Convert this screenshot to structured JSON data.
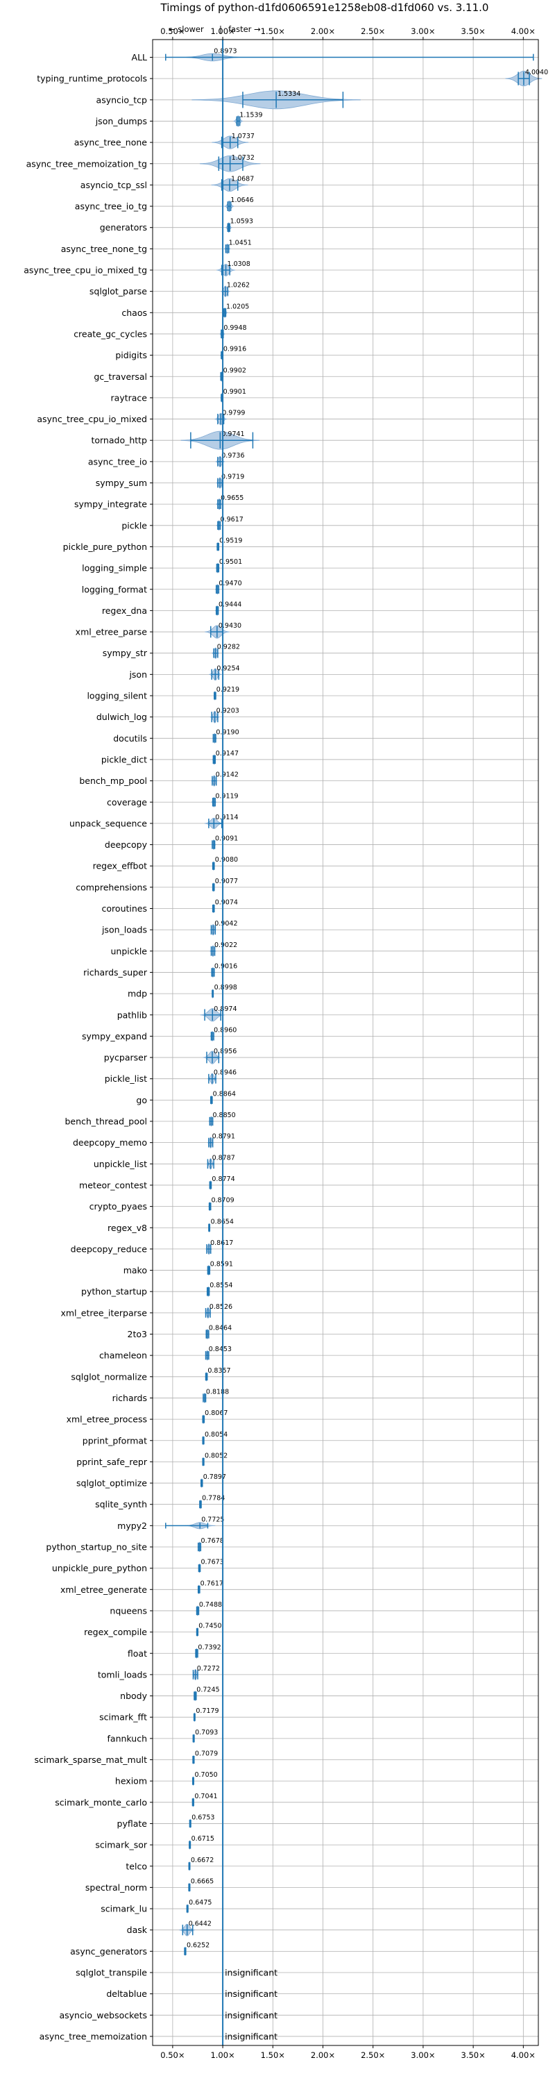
{
  "chart_data": {
    "type": "violin",
    "title": "Timings of python-d1fd0606591e1258eb08-d1fd060 vs. 3.11.0",
    "direction_labels": {
      "slower": "← slower",
      "separator": "|",
      "faster": "faster →"
    },
    "xlim": [
      0.3,
      4.15
    ],
    "x_ticks": [
      0.5,
      1.0,
      1.5,
      2.0,
      2.5,
      3.0,
      3.5,
      4.0
    ],
    "x_tick_labels": [
      "0.50×",
      "1.00×",
      "1.50×",
      "2.00×",
      "2.50×",
      "3.00×",
      "3.50×",
      "4.00×"
    ],
    "reference_line": 1.0,
    "grid": true,
    "insignificant_label": "insignificant",
    "benchmarks": [
      {
        "name": "ALL",
        "label": "0.8973",
        "value": 0.8973,
        "min": 0.43,
        "max": 4.1,
        "spread": 0.1,
        "height": 0.35
      },
      {
        "name": "typing_runtime_protocols",
        "label": "4.0040",
        "value": 4.004,
        "min": 3.95,
        "max": 4.06,
        "spread": 0.06,
        "height": 0.7
      },
      {
        "name": "asyncio_tcp",
        "label": "1.5334",
        "value": 1.5334,
        "min": 1.2,
        "max": 2.2,
        "spread": 0.28,
        "height": 0.85
      },
      {
        "name": "json_dumps",
        "label": "1.1539",
        "value": 1.1539,
        "min": 1.14,
        "max": 1.17,
        "spread": 0.015,
        "height": 0.5
      },
      {
        "name": "async_tree_none",
        "label": "1.0737",
        "value": 1.0737,
        "min": 0.99,
        "max": 1.15,
        "spread": 0.06,
        "height": 0.6
      },
      {
        "name": "async_tree_memoization_tg",
        "label": "1.0732",
        "value": 1.0732,
        "min": 0.96,
        "max": 1.2,
        "spread": 0.1,
        "height": 0.75
      },
      {
        "name": "asyncio_tcp_ssl",
        "label": "1.0687",
        "value": 1.0687,
        "min": 0.99,
        "max": 1.15,
        "spread": 0.06,
        "height": 0.6
      },
      {
        "name": "async_tree_io_tg",
        "label": "1.0646",
        "value": 1.0646,
        "min": 1.05,
        "max": 1.08,
        "spread": 0.015,
        "height": 0.5
      },
      {
        "name": "generators",
        "label": "1.0593",
        "value": 1.0593,
        "min": 1.05,
        "max": 1.07,
        "spread": 0.01,
        "height": 0.45
      },
      {
        "name": "async_tree_none_tg",
        "label": "1.0451",
        "value": 1.0451,
        "min": 1.03,
        "max": 1.06,
        "spread": 0.01,
        "height": 0.45
      },
      {
        "name": "async_tree_cpu_io_mixed_tg",
        "label": "1.0308",
        "value": 1.0308,
        "min": 0.99,
        "max": 1.07,
        "spread": 0.03,
        "height": 0.55
      },
      {
        "name": "sqlglot_parse",
        "label": "1.0262",
        "value": 1.0262,
        "min": 1.0,
        "max": 1.05,
        "spread": 0.015,
        "height": 0.5
      },
      {
        "name": "chaos",
        "label": "1.0205",
        "value": 1.0205,
        "min": 1.01,
        "max": 1.03,
        "spread": 0.008,
        "height": 0.45
      },
      {
        "name": "create_gc_cycles",
        "label": "0.9948",
        "value": 0.9948,
        "min": 0.985,
        "max": 1.005,
        "spread": 0.008,
        "height": 0.45
      },
      {
        "name": "pidigits",
        "label": "0.9916",
        "value": 0.9916,
        "min": 0.985,
        "max": 1.0,
        "spread": 0.005,
        "height": 0.4
      },
      {
        "name": "gc_traversal",
        "label": "0.9902",
        "value": 0.9902,
        "min": 0.98,
        "max": 1.0,
        "spread": 0.006,
        "height": 0.45
      },
      {
        "name": "raytrace",
        "label": "0.9901",
        "value": 0.9901,
        "min": 0.985,
        "max": 0.995,
        "spread": 0.004,
        "height": 0.4
      },
      {
        "name": "async_tree_cpu_io_mixed",
        "label": "0.9799",
        "value": 0.9799,
        "min": 0.95,
        "max": 1.01,
        "spread": 0.02,
        "height": 0.55
      },
      {
        "name": "tornado_http",
        "label": "0.9741",
        "value": 0.9741,
        "min": 0.68,
        "max": 1.3,
        "spread": 0.13,
        "height": 0.85
      },
      {
        "name": "async_tree_io",
        "label": "0.9736",
        "value": 0.9736,
        "min": 0.95,
        "max": 1.0,
        "spread": 0.015,
        "height": 0.5
      },
      {
        "name": "sympy_sum",
        "label": "0.9719",
        "value": 0.9719,
        "min": 0.95,
        "max": 0.995,
        "spread": 0.012,
        "height": 0.5
      },
      {
        "name": "sympy_integrate",
        "label": "0.9655",
        "value": 0.9655,
        "min": 0.95,
        "max": 0.98,
        "spread": 0.01,
        "height": 0.5
      },
      {
        "name": "pickle",
        "label": "0.9617",
        "value": 0.9617,
        "min": 0.95,
        "max": 0.975,
        "spread": 0.008,
        "height": 0.45
      },
      {
        "name": "pickle_pure_python",
        "label": "0.9519",
        "value": 0.9519,
        "min": 0.945,
        "max": 0.96,
        "spread": 0.005,
        "height": 0.4
      },
      {
        "name": "logging_simple",
        "label": "0.9501",
        "value": 0.9501,
        "min": 0.94,
        "max": 0.96,
        "spread": 0.006,
        "height": 0.45
      },
      {
        "name": "logging_format",
        "label": "0.9470",
        "value": 0.947,
        "min": 0.935,
        "max": 0.96,
        "spread": 0.007,
        "height": 0.45
      },
      {
        "name": "regex_dna",
        "label": "0.9444",
        "value": 0.9444,
        "min": 0.935,
        "max": 0.955,
        "spread": 0.006,
        "height": 0.45
      },
      {
        "name": "xml_etree_parse",
        "label": "0.9430",
        "value": 0.943,
        "min": 0.88,
        "max": 1.0,
        "spread": 0.04,
        "height": 0.6
      },
      {
        "name": "sympy_str",
        "label": "0.9282",
        "value": 0.9282,
        "min": 0.91,
        "max": 0.95,
        "spread": 0.012,
        "height": 0.5
      },
      {
        "name": "json",
        "label": "0.9254",
        "value": 0.9254,
        "min": 0.89,
        "max": 0.96,
        "spread": 0.02,
        "height": 0.55
      },
      {
        "name": "logging_silent",
        "label": "0.9219",
        "value": 0.9219,
        "min": 0.915,
        "max": 0.93,
        "spread": 0.004,
        "height": 0.4
      },
      {
        "name": "dulwich_log",
        "label": "0.9203",
        "value": 0.9203,
        "min": 0.89,
        "max": 0.95,
        "spread": 0.015,
        "height": 0.55
      },
      {
        "name": "docutils",
        "label": "0.9190",
        "value": 0.919,
        "min": 0.905,
        "max": 0.93,
        "spread": 0.007,
        "height": 0.45
      },
      {
        "name": "pickle_dict",
        "label": "0.9147",
        "value": 0.9147,
        "min": 0.905,
        "max": 0.925,
        "spread": 0.006,
        "height": 0.45
      },
      {
        "name": "bench_mp_pool",
        "label": "0.9142",
        "value": 0.9142,
        "min": 0.895,
        "max": 0.935,
        "spread": 0.01,
        "height": 0.5
      },
      {
        "name": "coverage",
        "label": "0.9119",
        "value": 0.9119,
        "min": 0.9,
        "max": 0.925,
        "spread": 0.008,
        "height": 0.45
      },
      {
        "name": "unpack_sequence",
        "label": "0.9114",
        "value": 0.9114,
        "min": 0.86,
        "max": 0.99,
        "spread": 0.03,
        "height": 0.5
      },
      {
        "name": "deepcopy",
        "label": "0.9091",
        "value": 0.9091,
        "min": 0.895,
        "max": 0.92,
        "spread": 0.007,
        "height": 0.45
      },
      {
        "name": "regex_effbot",
        "label": "0.9080",
        "value": 0.908,
        "min": 0.9,
        "max": 0.915,
        "spread": 0.004,
        "height": 0.4
      },
      {
        "name": "comprehensions",
        "label": "0.9077",
        "value": 0.9077,
        "min": 0.9,
        "max": 0.915,
        "spread": 0.004,
        "height": 0.4
      },
      {
        "name": "coroutines",
        "label": "0.9074",
        "value": 0.9074,
        "min": 0.9,
        "max": 0.915,
        "spread": 0.004,
        "height": 0.4
      },
      {
        "name": "json_loads",
        "label": "0.9042",
        "value": 0.9042,
        "min": 0.885,
        "max": 0.925,
        "spread": 0.01,
        "height": 0.5
      },
      {
        "name": "unpickle",
        "label": "0.9022",
        "value": 0.9022,
        "min": 0.885,
        "max": 0.92,
        "spread": 0.01,
        "height": 0.5
      },
      {
        "name": "richards_super",
        "label": "0.9016",
        "value": 0.9016,
        "min": 0.89,
        "max": 0.915,
        "spread": 0.007,
        "height": 0.45
      },
      {
        "name": "mdp",
        "label": "0.8998",
        "value": 0.8998,
        "min": 0.895,
        "max": 0.905,
        "spread": 0.003,
        "height": 0.4
      },
      {
        "name": "pathlib",
        "label": "0.8974",
        "value": 0.8974,
        "min": 0.82,
        "max": 0.98,
        "spread": 0.04,
        "height": 0.6
      },
      {
        "name": "sympy_expand",
        "label": "0.8960",
        "value": 0.896,
        "min": 0.885,
        "max": 0.91,
        "spread": 0.007,
        "height": 0.45
      },
      {
        "name": "pycparser",
        "label": "0.8956",
        "value": 0.8956,
        "min": 0.84,
        "max": 0.96,
        "spread": 0.03,
        "height": 0.6
      },
      {
        "name": "pickle_list",
        "label": "0.8946",
        "value": 0.8946,
        "min": 0.86,
        "max": 0.93,
        "spread": 0.015,
        "height": 0.5
      },
      {
        "name": "go",
        "label": "0.8864",
        "value": 0.8864,
        "min": 0.88,
        "max": 0.895,
        "spread": 0.004,
        "height": 0.4
      },
      {
        "name": "bench_thread_pool",
        "label": "0.8850",
        "value": 0.885,
        "min": 0.87,
        "max": 0.9,
        "spread": 0.008,
        "height": 0.45
      },
      {
        "name": "deepcopy_memo",
        "label": "0.8791",
        "value": 0.8791,
        "min": 0.86,
        "max": 0.9,
        "spread": 0.01,
        "height": 0.5
      },
      {
        "name": "unpickle_list",
        "label": "0.8787",
        "value": 0.8787,
        "min": 0.85,
        "max": 0.91,
        "spread": 0.012,
        "height": 0.5
      },
      {
        "name": "meteor_contest",
        "label": "0.8774",
        "value": 0.8774,
        "min": 0.87,
        "max": 0.885,
        "spread": 0.004,
        "height": 0.4
      },
      {
        "name": "crypto_pyaes",
        "label": "0.8709",
        "value": 0.8709,
        "min": 0.865,
        "max": 0.88,
        "spread": 0.004,
        "height": 0.4
      },
      {
        "name": "regex_v8",
        "label": "0.8654",
        "value": 0.8654,
        "min": 0.86,
        "max": 0.87,
        "spread": 0.003,
        "height": 0.4
      },
      {
        "name": "deepcopy_reduce",
        "label": "0.8617",
        "value": 0.8617,
        "min": 0.84,
        "max": 0.88,
        "spread": 0.01,
        "height": 0.5
      },
      {
        "name": "mako",
        "label": "0.8591",
        "value": 0.8591,
        "min": 0.85,
        "max": 0.87,
        "spread": 0.005,
        "height": 0.45
      },
      {
        "name": "python_startup",
        "label": "0.8554",
        "value": 0.8554,
        "min": 0.845,
        "max": 0.865,
        "spread": 0.005,
        "height": 0.45
      },
      {
        "name": "xml_etree_iterparse",
        "label": "0.8526",
        "value": 0.8526,
        "min": 0.83,
        "max": 0.875,
        "spread": 0.01,
        "height": 0.5
      },
      {
        "name": "2to3",
        "label": "0.8464",
        "value": 0.8464,
        "min": 0.835,
        "max": 0.86,
        "spread": 0.006,
        "height": 0.45
      },
      {
        "name": "chameleon",
        "label": "0.8453",
        "value": 0.8453,
        "min": 0.83,
        "max": 0.86,
        "spread": 0.007,
        "height": 0.45
      },
      {
        "name": "sqlglot_normalize",
        "label": "0.8357",
        "value": 0.8357,
        "min": 0.83,
        "max": 0.845,
        "spread": 0.004,
        "height": 0.4
      },
      {
        "name": "richards",
        "label": "0.8188",
        "value": 0.8188,
        "min": 0.805,
        "max": 0.83,
        "spread": 0.006,
        "height": 0.45
      },
      {
        "name": "xml_etree_process",
        "label": "0.8067",
        "value": 0.8067,
        "min": 0.8,
        "max": 0.815,
        "spread": 0.004,
        "height": 0.4
      },
      {
        "name": "pprint_pformat",
        "label": "0.8054",
        "value": 0.8054,
        "min": 0.8,
        "max": 0.812,
        "spread": 0.003,
        "height": 0.4
      },
      {
        "name": "pprint_safe_repr",
        "label": "0.8052",
        "value": 0.8052,
        "min": 0.8,
        "max": 0.812,
        "spread": 0.003,
        "height": 0.4
      },
      {
        "name": "sqlglot_optimize",
        "label": "0.7897",
        "value": 0.7897,
        "min": 0.783,
        "max": 0.797,
        "spread": 0.003,
        "height": 0.4
      },
      {
        "name": "sqlite_synth",
        "label": "0.7784",
        "value": 0.7784,
        "min": 0.77,
        "max": 0.785,
        "spread": 0.003,
        "height": 0.4
      },
      {
        "name": "mypy2",
        "label": "0.7725",
        "value": 0.7725,
        "min": 0.43,
        "max": 0.85,
        "spread": 0.05,
        "height": 0.3
      },
      {
        "name": "python_startup_no_site",
        "label": "0.7678",
        "value": 0.7678,
        "min": 0.755,
        "max": 0.78,
        "spread": 0.006,
        "height": 0.45
      },
      {
        "name": "unpickle_pure_python",
        "label": "0.7673",
        "value": 0.7673,
        "min": 0.76,
        "max": 0.775,
        "spread": 0.003,
        "height": 0.4
      },
      {
        "name": "xml_etree_generate",
        "label": "0.7617",
        "value": 0.7617,
        "min": 0.755,
        "max": 0.77,
        "spread": 0.003,
        "height": 0.4
      },
      {
        "name": "nqueens",
        "label": "0.7488",
        "value": 0.7488,
        "min": 0.74,
        "max": 0.76,
        "spread": 0.005,
        "height": 0.45
      },
      {
        "name": "regex_compile",
        "label": "0.7450",
        "value": 0.745,
        "min": 0.74,
        "max": 0.752,
        "spread": 0.003,
        "height": 0.4
      },
      {
        "name": "float",
        "label": "0.7392",
        "value": 0.7392,
        "min": 0.73,
        "max": 0.75,
        "spread": 0.005,
        "height": 0.45
      },
      {
        "name": "tomli_loads",
        "label": "0.7272",
        "value": 0.7272,
        "min": 0.705,
        "max": 0.75,
        "spread": 0.01,
        "height": 0.5
      },
      {
        "name": "nbody",
        "label": "0.7245",
        "value": 0.7245,
        "min": 0.715,
        "max": 0.735,
        "spread": 0.005,
        "height": 0.45
      },
      {
        "name": "scimark_fft",
        "label": "0.7179",
        "value": 0.7179,
        "min": 0.713,
        "max": 0.723,
        "spread": 0.003,
        "height": 0.4
      },
      {
        "name": "fannkuch",
        "label": "0.7093",
        "value": 0.7093,
        "min": 0.704,
        "max": 0.715,
        "spread": 0.003,
        "height": 0.4
      },
      {
        "name": "scimark_sparse_mat_mult",
        "label": "0.7079",
        "value": 0.7079,
        "min": 0.702,
        "max": 0.714,
        "spread": 0.003,
        "height": 0.4
      },
      {
        "name": "hexiom",
        "label": "0.7050",
        "value": 0.705,
        "min": 0.7,
        "max": 0.71,
        "spread": 0.003,
        "height": 0.4
      },
      {
        "name": "scimark_monte_carlo",
        "label": "0.7041",
        "value": 0.7041,
        "min": 0.698,
        "max": 0.71,
        "spread": 0.003,
        "height": 0.4
      },
      {
        "name": "pyflate",
        "label": "0.6753",
        "value": 0.6753,
        "min": 0.67,
        "max": 0.681,
        "spread": 0.003,
        "height": 0.4
      },
      {
        "name": "scimark_sor",
        "label": "0.6715",
        "value": 0.6715,
        "min": 0.666,
        "max": 0.677,
        "spread": 0.003,
        "height": 0.4
      },
      {
        "name": "telco",
        "label": "0.6672",
        "value": 0.6672,
        "min": 0.662,
        "max": 0.672,
        "spread": 0.003,
        "height": 0.4
      },
      {
        "name": "spectral_norm",
        "label": "0.6665",
        "value": 0.6665,
        "min": 0.661,
        "max": 0.672,
        "spread": 0.003,
        "height": 0.4
      },
      {
        "name": "scimark_lu",
        "label": "0.6475",
        "value": 0.6475,
        "min": 0.642,
        "max": 0.653,
        "spread": 0.003,
        "height": 0.4
      },
      {
        "name": "dask",
        "label": "0.6442",
        "value": 0.6442,
        "min": 0.6,
        "max": 0.7,
        "spread": 0.025,
        "height": 0.55
      },
      {
        "name": "async_generators",
        "label": "0.6252",
        "value": 0.6252,
        "min": 0.619,
        "max": 0.631,
        "spread": 0.003,
        "height": 0.4
      },
      {
        "name": "sqlglot_transpile",
        "label": "insignificant",
        "value": null
      },
      {
        "name": "deltablue",
        "label": "insignificant",
        "value": null
      },
      {
        "name": "asyncio_websockets",
        "label": "insignificant",
        "value": null
      },
      {
        "name": "async_tree_memoization",
        "label": "insignificant",
        "value": null
      }
    ],
    "colors": {
      "violin_fill": "#a9c6e2",
      "violin_edge": "#7fa9d2",
      "line": "#1f77b4",
      "grid": "#b0b0b0",
      "axes": "#000000"
    }
  }
}
